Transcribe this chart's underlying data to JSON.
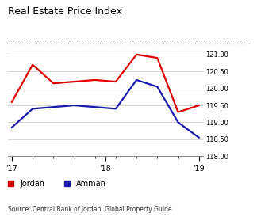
{
  "title": "Real Estate Price Index",
  "source": "Source: Central Bank of Jordan, Global Property Guide",
  "jordan_x": [
    0,
    1,
    2,
    3,
    4,
    5,
    6,
    7,
    8,
    9
  ],
  "jordan_y": [
    119.6,
    120.7,
    120.15,
    120.2,
    120.25,
    120.2,
    121.0,
    120.9,
    119.3,
    119.5
  ],
  "amman_x": [
    0,
    1,
    2,
    3,
    4,
    5,
    6,
    7,
    8,
    9
  ],
  "amman_y": [
    118.85,
    119.4,
    119.45,
    119.5,
    119.45,
    119.4,
    120.25,
    120.05,
    119.0,
    118.55
  ],
  "jordan_color": "#dd0000",
  "amman_color": "#1a1aaa",
  "ylim": [
    118.0,
    121.2
  ],
  "yticks": [
    118.0,
    118.5,
    119.0,
    119.5,
    120.0,
    120.5,
    121.0
  ],
  "xtick_positions": [
    0,
    4.5,
    9
  ],
  "xtick_labels": [
    "'17",
    "'18",
    "'19"
  ],
  "minor_xtick_positions": [
    1,
    2,
    3,
    4,
    5,
    6,
    7,
    8
  ],
  "bg_color": "#ffffff",
  "grid_color": "#d0d0d0",
  "linewidth": 1.6
}
